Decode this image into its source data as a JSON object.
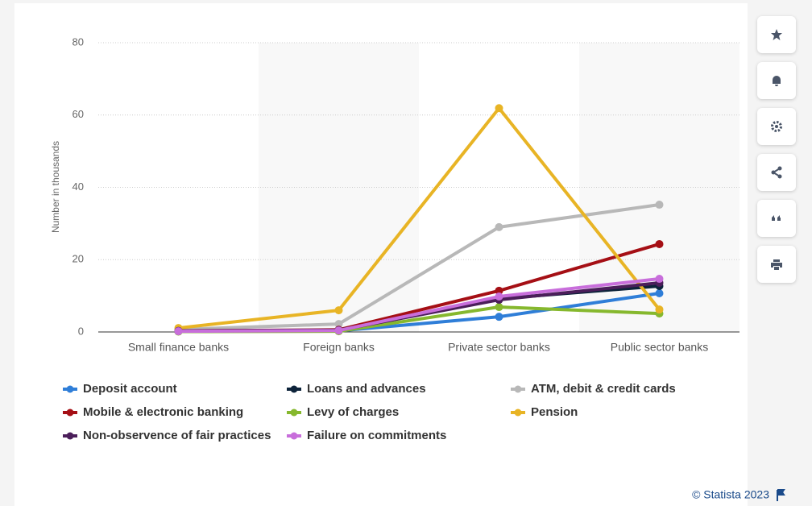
{
  "chart_data": {
    "type": "line",
    "y_label": "Number in thousands",
    "categories": [
      "Small finance banks",
      "Foreign banks",
      "Private sector banks",
      "Public sector banks"
    ],
    "series": [
      {
        "name": "Deposit account",
        "color": "#2f7ed8",
        "values": [
          0.2,
          0.3,
          4.2,
          10.7
        ]
      },
      {
        "name": "Loans and advances",
        "color": "#0d233a",
        "values": [
          0.2,
          0.4,
          9.2,
          12.7
        ]
      },
      {
        "name": "ATM, debit & credit cards",
        "color": "#b8b8b8",
        "values": [
          0.7,
          2.2,
          29,
          35.2
        ]
      },
      {
        "name": "Mobile & electronic banking",
        "color": "#a50f15",
        "values": [
          0.3,
          0.6,
          11.4,
          24.3
        ]
      },
      {
        "name": "Levy of charges",
        "color": "#86b82e",
        "values": [
          0.1,
          0.2,
          6.9,
          5.1
        ]
      },
      {
        "name": "Pension",
        "color": "#e8b425",
        "values": [
          1.1,
          6.0,
          61.9,
          6.2
        ]
      },
      {
        "name": "Non-observence of fair practices",
        "color": "#4b1e5a",
        "values": [
          0.3,
          0.5,
          8.9,
          13.6
        ]
      },
      {
        "name": "Failure on commitments",
        "color": "#c86edb",
        "values": [
          0.2,
          0.4,
          9.8,
          14.7
        ]
      }
    ],
    "ylim": [
      0,
      80
    ],
    "yticks": [
      0,
      20,
      40,
      60,
      80
    ],
    "grid": true,
    "legend": "bottom",
    "credit": "© Statista 2023"
  }
}
